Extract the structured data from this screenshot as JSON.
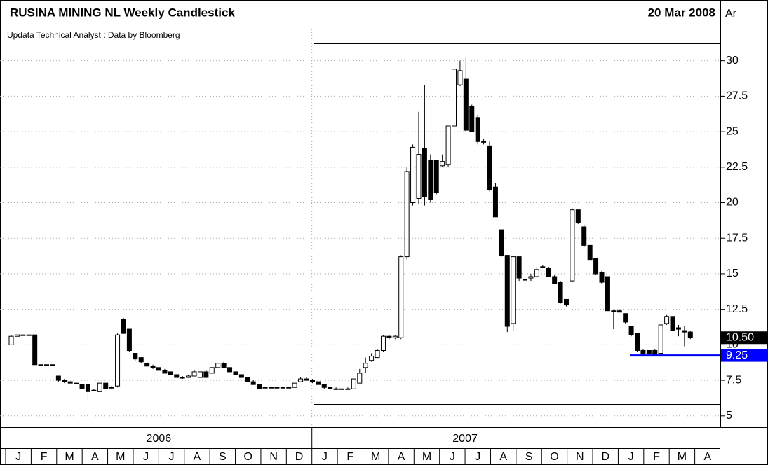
{
  "chart_data": {
    "type": "candlestick",
    "title": "RUSINA MINING NL Weekly Candlestick",
    "date": "20 Mar 2008",
    "corner_label": "Ar",
    "subtitle": "Updata Technical Analyst : Data by Bloomberg",
    "years": [
      "2006",
      "2007"
    ],
    "months": [
      "J",
      "F",
      "M",
      "A",
      "M",
      "J",
      "J",
      "A",
      "S",
      "O",
      "N",
      "D",
      "J",
      "F",
      "M",
      "A",
      "M",
      "J",
      "J",
      "A",
      "S",
      "O",
      "N",
      "D",
      "J",
      "F",
      "M",
      "A"
    ],
    "ylim": [
      4.3,
      32.4
    ],
    "yticks": [
      5,
      7.5,
      10,
      12.5,
      15,
      17.5,
      20,
      22.5,
      25,
      27.5,
      30
    ],
    "grid": true,
    "up_color": "#ffffff",
    "down_color": "#000000",
    "annotations": [
      {
        "value": 10.5,
        "label": "10.50",
        "color": "#000000"
      },
      {
        "value": 9.25,
        "label": "9.25",
        "color": "#0000ff"
      }
    ],
    "ohlc": [
      [
        10.0,
        10.7,
        10.0,
        10.6
      ],
      [
        10.6,
        10.7,
        10.6,
        10.7
      ],
      [
        10.7,
        10.7,
        10.7,
        10.7
      ],
      [
        10.7,
        10.7,
        10.7,
        10.7
      ],
      [
        10.7,
        10.7,
        8.6,
        8.6
      ],
      [
        8.6,
        8.6,
        8.6,
        8.6
      ],
      [
        8.6,
        8.6,
        8.6,
        8.6
      ],
      [
        8.6,
        8.6,
        8.6,
        8.6
      ],
      [
        7.8,
        7.8,
        7.4,
        7.5
      ],
      [
        7.5,
        7.6,
        7.3,
        7.4
      ],
      [
        7.4,
        7.4,
        7.3,
        7.3
      ],
      [
        7.3,
        7.3,
        7.3,
        7.3
      ],
      [
        7.2,
        7.2,
        6.9,
        6.9
      ],
      [
        7.2,
        7.2,
        6.0,
        6.7
      ],
      [
        6.8,
        6.9,
        6.8,
        6.8
      ],
      [
        6.7,
        7.3,
        6.7,
        7.3
      ],
      [
        7.3,
        7.3,
        6.9,
        6.9
      ],
      [
        7.0,
        7.1,
        6.9,
        7.0
      ],
      [
        7.1,
        10.8,
        7.0,
        10.7
      ],
      [
        11.8,
        11.9,
        10.8,
        10.8
      ],
      [
        11.1,
        11.1,
        9.5,
        9.6
      ],
      [
        9.4,
        9.4,
        8.9,
        9.0
      ],
      [
        9.1,
        9.1,
        8.7,
        8.8
      ],
      [
        8.7,
        8.8,
        8.5,
        8.5
      ],
      [
        8.5,
        8.6,
        8.3,
        8.4
      ],
      [
        8.4,
        8.4,
        8.2,
        8.2
      ],
      [
        8.2,
        8.3,
        8.0,
        8.0
      ],
      [
        8.1,
        8.1,
        7.9,
        7.9
      ],
      [
        7.9,
        7.9,
        7.7,
        7.7
      ],
      [
        7.7,
        7.8,
        7.6,
        7.7
      ],
      [
        7.7,
        7.9,
        7.7,
        7.8
      ],
      [
        7.8,
        8.2,
        7.8,
        8.1
      ],
      [
        7.7,
        8.1,
        7.7,
        8.1
      ],
      [
        8.1,
        8.2,
        7.7,
        7.7
      ],
      [
        8.0,
        8.4,
        8.0,
        8.4
      ],
      [
        8.4,
        8.7,
        8.4,
        8.7
      ],
      [
        8.7,
        8.8,
        8.4,
        8.4
      ],
      [
        8.4,
        8.4,
        8.1,
        8.1
      ],
      [
        8.1,
        8.1,
        7.9,
        7.9
      ],
      [
        7.9,
        7.9,
        7.7,
        7.7
      ],
      [
        7.7,
        7.7,
        7.4,
        7.4
      ],
      [
        7.4,
        7.5,
        7.2,
        7.2
      ],
      [
        7.2,
        7.2,
        6.9,
        6.9
      ],
      [
        7.0,
        7.0,
        7.0,
        7.0
      ],
      [
        7.0,
        7.0,
        7.0,
        7.0
      ],
      [
        7.0,
        7.0,
        7.0,
        7.0
      ],
      [
        7.0,
        7.0,
        7.0,
        7.0
      ],
      [
        7.0,
        7.0,
        7.0,
        7.0
      ],
      [
        7.0,
        7.3,
        7.0,
        7.3
      ],
      [
        7.4,
        7.7,
        7.4,
        7.6
      ],
      [
        7.6,
        7.7,
        7.5,
        7.5
      ],
      [
        7.5,
        7.6,
        7.3,
        7.4
      ],
      [
        7.4,
        7.4,
        7.2,
        7.2
      ],
      [
        7.2,
        7.2,
        6.9,
        7.0
      ],
      [
        7.0,
        7.0,
        6.9,
        6.9
      ],
      [
        6.9,
        7.0,
        6.9,
        6.9
      ],
      [
        6.9,
        7.0,
        6.9,
        6.9
      ],
      [
        6.9,
        7.0,
        6.9,
        6.9
      ],
      [
        6.9,
        7.6,
        6.9,
        7.6
      ],
      [
        7.3,
        8.3,
        7.3,
        8.0
      ],
      [
        8.4,
        9.1,
        8.0,
        8.7
      ],
      [
        8.9,
        9.4,
        8.8,
        9.2
      ],
      [
        9.1,
        9.7,
        9.1,
        9.6
      ],
      [
        9.6,
        10.7,
        9.5,
        10.6
      ],
      [
        10.6,
        10.7,
        10.4,
        10.5
      ],
      [
        10.5,
        10.7,
        10.4,
        10.6
      ],
      [
        10.5,
        16.3,
        10.4,
        16.2
      ],
      [
        16.2,
        22.5,
        16.0,
        22.2
      ],
      [
        20.0,
        24.1,
        19.8,
        23.9
      ],
      [
        20.3,
        26.4,
        19.9,
        23.4
      ],
      [
        23.8,
        28.3,
        19.8,
        20.4
      ],
      [
        23.0,
        23.4,
        20.0,
        20.2
      ],
      [
        23.0,
        23.0,
        20.6,
        20.7
      ],
      [
        22.6,
        23.4,
        22.5,
        22.9
      ],
      [
        22.7,
        25.4,
        22.5,
        25.4
      ],
      [
        25.4,
        30.5,
        25.2,
        29.4
      ],
      [
        28.3,
        30.0,
        28.2,
        29.3
      ],
      [
        28.7,
        30.2,
        25.0,
        25.1
      ],
      [
        26.8,
        26.9,
        25.0,
        25.0
      ],
      [
        26.0,
        26.2,
        24.1,
        24.3
      ],
      [
        24.3,
        24.5,
        24.1,
        24.3
      ],
      [
        24.0,
        24.3,
        20.8,
        20.9
      ],
      [
        21.1,
        21.4,
        19.0,
        19.0
      ],
      [
        18.1,
        18.1,
        16.2,
        16.3
      ],
      [
        16.3,
        16.3,
        10.9,
        11.3
      ],
      [
        11.5,
        16.2,
        11.0,
        16.2
      ],
      [
        16.2,
        16.2,
        14.5,
        14.7
      ],
      [
        14.6,
        14.8,
        14.5,
        14.6
      ],
      [
        14.7,
        15.0,
        14.5,
        14.8
      ],
      [
        14.8,
        15.5,
        14.7,
        15.3
      ],
      [
        15.5,
        15.6,
        15.4,
        15.5
      ],
      [
        15.4,
        15.5,
        14.8,
        14.8
      ],
      [
        14.8,
        14.9,
        14.3,
        14.3
      ],
      [
        14.4,
        14.5,
        12.9,
        13.0
      ],
      [
        13.2,
        13.2,
        12.7,
        12.8
      ],
      [
        14.5,
        19.6,
        14.4,
        19.5
      ],
      [
        19.5,
        19.5,
        18.5,
        18.6
      ],
      [
        18.3,
        18.4,
        16.9,
        17.0
      ],
      [
        17.0,
        17.0,
        16.0,
        16.0
      ],
      [
        16.1,
        16.1,
        14.9,
        15.0
      ],
      [
        15.1,
        15.2,
        14.3,
        14.4
      ],
      [
        14.8,
        14.8,
        12.4,
        12.4
      ],
      [
        12.4,
        12.5,
        11.1,
        12.4
      ],
      [
        12.4,
        12.5,
        12.3,
        12.3
      ],
      [
        12.2,
        12.2,
        11.5,
        11.6
      ],
      [
        11.3,
        11.3,
        10.6,
        10.7
      ],
      [
        10.8,
        10.8,
        9.5,
        9.6
      ],
      [
        9.6,
        9.7,
        9.3,
        9.4
      ],
      [
        9.6,
        9.6,
        9.3,
        9.4
      ],
      [
        9.6,
        9.7,
        9.3,
        9.3
      ],
      [
        9.4,
        11.4,
        9.3,
        11.4
      ],
      [
        11.5,
        12.1,
        11.4,
        12.0
      ],
      [
        12.0,
        12.0,
        11.0,
        11.0
      ],
      [
        11.2,
        11.4,
        10.6,
        11.1
      ],
      [
        11.0,
        11.3,
        9.9,
        10.9
      ],
      [
        10.9,
        11.0,
        10.4,
        10.5
      ]
    ]
  }
}
